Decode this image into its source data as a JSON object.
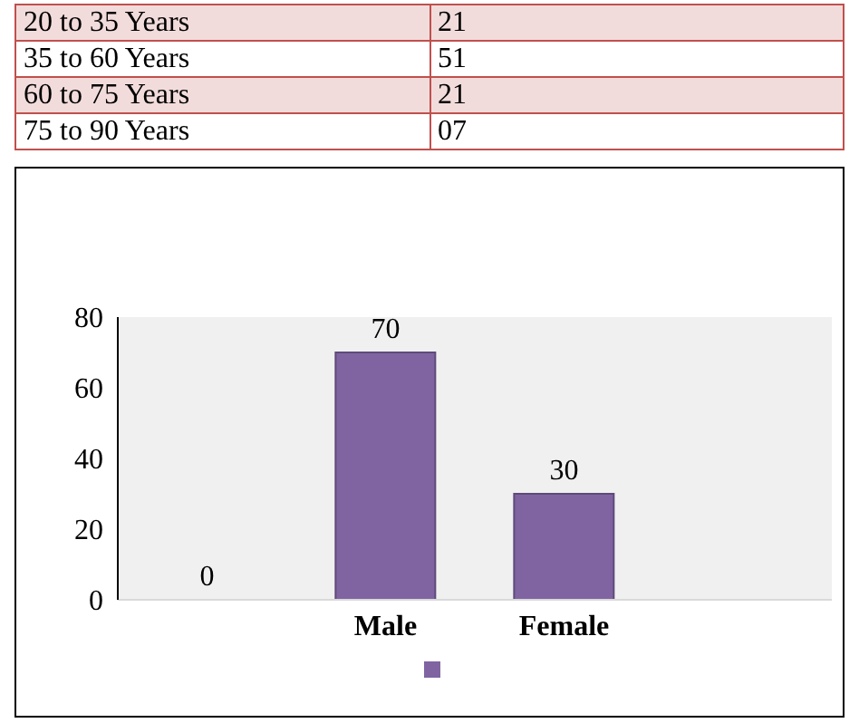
{
  "chart_data": [
    {
      "type": "other",
      "categories": [
        "20 to 35 Years",
        "35 to 60 Years",
        "60 to 75 Years",
        "75 to 90 Years"
      ],
      "value_labels": [
        "21",
        "51",
        "21",
        "07"
      ]
    },
    {
      "type": "bar",
      "categories": [
        null,
        "Male",
        "Female",
        null
      ],
      "series": [
        {
          "color": "#8064a2",
          "values": [
            0,
            70,
            30,
            null
          ]
        }
      ],
      "ylim": [
        0,
        80
      ],
      "yticks": [
        0,
        20,
        40,
        60,
        80
      ],
      "data_labels": true
    }
  ]
}
